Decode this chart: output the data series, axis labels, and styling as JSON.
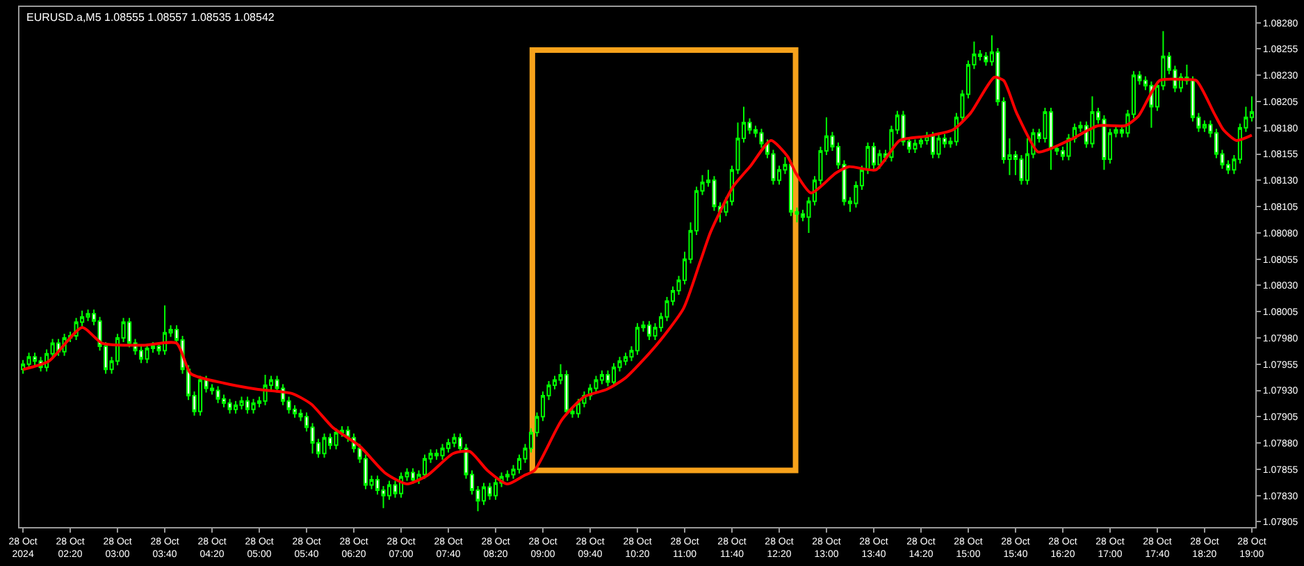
{
  "chart_data": {
    "type": "candlestick",
    "title": "EURUSD.a,M5 1.08555 1.08557 1.08535 1.08542",
    "xlim": [
      "2024-10-28T01:37",
      "2024-10-28T19:03"
    ],
    "xticks": [
      {
        "value": "2024-10-28T01:40",
        "label": "28 Oct 2024"
      },
      {
        "value": "2024-10-28T02:20",
        "label": "28 Oct 02:20"
      },
      {
        "value": "2024-10-28T03:00",
        "label": "28 Oct 03:00"
      },
      {
        "value": "2024-10-28T03:40",
        "label": "28 Oct 03:40"
      },
      {
        "value": "2024-10-28T04:20",
        "label": "28 Oct 04:20"
      },
      {
        "value": "2024-10-28T05:00",
        "label": "28 Oct 05:00"
      },
      {
        "value": "2024-10-28T05:40",
        "label": "28 Oct 05:40"
      },
      {
        "value": "2024-10-28T06:20",
        "label": "28 Oct 06:20"
      },
      {
        "value": "2024-10-28T07:00",
        "label": "28 Oct 07:00"
      },
      {
        "value": "2024-10-28T07:40",
        "label": "28 Oct 07:40"
      },
      {
        "value": "2024-10-28T08:20",
        "label": "28 Oct 08:20"
      },
      {
        "value": "2024-10-28T09:00",
        "label": "28 Oct 09:00"
      },
      {
        "value": "2024-10-28T09:40",
        "label": "28 Oct 09:40"
      },
      {
        "value": "2024-10-28T10:20",
        "label": "28 Oct 10:20"
      },
      {
        "value": "2024-10-28T11:00",
        "label": "28 Oct 11:00"
      },
      {
        "value": "2024-10-28T11:40",
        "label": "28 Oct 11:40"
      },
      {
        "value": "2024-10-28T12:20",
        "label": "28 Oct 12:20"
      },
      {
        "value": "2024-10-28T13:00",
        "label": "28 Oct 13:00"
      },
      {
        "value": "2024-10-28T13:40",
        "label": "28 Oct 13:40"
      },
      {
        "value": "2024-10-28T14:20",
        "label": "28 Oct 14:20"
      },
      {
        "value": "2024-10-28T15:00",
        "label": "28 Oct 15:00"
      },
      {
        "value": "2024-10-28T15:40",
        "label": "28 Oct 15:40"
      },
      {
        "value": "2024-10-28T16:20",
        "label": "28 Oct 16:20"
      },
      {
        "value": "2024-10-28T17:00",
        "label": "28 Oct 17:00"
      },
      {
        "value": "2024-10-28T17:40",
        "label": "28 Oct 17:40"
      },
      {
        "value": "2024-10-28T18:20",
        "label": "28 Oct 18:20"
      },
      {
        "value": "2024-10-28T19:00",
        "label": "28 Oct 19:00"
      }
    ],
    "ylim": [
      1.078,
      1.08295
    ],
    "yticks": [
      1.07805,
      {
        "value": 1.0783,
        "label": "1.07830"
      },
      1.07855,
      {
        "value": 1.0788,
        "label": "1.07880"
      },
      1.07905,
      {
        "value": 1.0793,
        "label": "1.07930"
      },
      1.07955,
      {
        "value": 1.0798,
        "label": "1.07980"
      },
      1.08005,
      {
        "value": 1.0803,
        "label": "1.08030"
      },
      1.08055,
      {
        "value": 1.0808,
        "label": "1.08080"
      },
      1.08105,
      {
        "value": 1.0813,
        "label": "1.08130"
      },
      1.08155,
      {
        "value": 1.0818,
        "label": "1.08180"
      },
      1.08205,
      {
        "value": 1.0823,
        "label": "1.08230"
      },
      1.08255,
      {
        "value": 1.0828,
        "label": "1.08280"
      }
    ],
    "grid": false,
    "series": [
      {
        "color": "#00ff00",
        "x": [
          "2024-10-28T01:40",
          "2024-10-28T01:45",
          "2024-10-28T01:50",
          "2024-10-28T01:55",
          "2024-10-28T02:00",
          "2024-10-28T02:05",
          "2024-10-28T02:10",
          "2024-10-28T02:15",
          "2024-10-28T02:20",
          "2024-10-28T02:25",
          "2024-10-28T02:30",
          "2024-10-28T02:35",
          "2024-10-28T02:40",
          "2024-10-28T02:45",
          "2024-10-28T02:50",
          "2024-10-28T02:55",
          "2024-10-28T03:00",
          "2024-10-28T03:05",
          "2024-10-28T03:10",
          "2024-10-28T03:15",
          "2024-10-28T03:20",
          "2024-10-28T03:25",
          "2024-10-28T03:30",
          "2024-10-28T03:35",
          "2024-10-28T03:40",
          "2024-10-28T03:45",
          "2024-10-28T03:50",
          "2024-10-28T03:55",
          "2024-10-28T04:00",
          "2024-10-28T04:05",
          "2024-10-28T04:10",
          "2024-10-28T04:15",
          "2024-10-28T04:20",
          "2024-10-28T04:25",
          "2024-10-28T04:30",
          "2024-10-28T04:35",
          "2024-10-28T04:40",
          "2024-10-28T04:45",
          "2024-10-28T04:50",
          "2024-10-28T04:55",
          "2024-10-28T05:00",
          "2024-10-28T05:05",
          "2024-10-28T05:10",
          "2024-10-28T05:15",
          "2024-10-28T05:20",
          "2024-10-28T05:25",
          "2024-10-28T05:30",
          "2024-10-28T05:35",
          "2024-10-28T05:40",
          "2024-10-28T05:45",
          "2024-10-28T05:50",
          "2024-10-28T05:55",
          "2024-10-28T06:00",
          "2024-10-28T06:05",
          "2024-10-28T06:10",
          "2024-10-28T06:15",
          "2024-10-28T06:20",
          "2024-10-28T06:25",
          "2024-10-28T06:30",
          "2024-10-28T06:35",
          "2024-10-28T06:40",
          "2024-10-28T06:45",
          "2024-10-28T06:50",
          "2024-10-28T06:55",
          "2024-10-28T07:00",
          "2024-10-28T07:05",
          "2024-10-28T07:10",
          "2024-10-28T07:15",
          "2024-10-28T07:20",
          "2024-10-28T07:25",
          "2024-10-28T07:30",
          "2024-10-28T07:35",
          "2024-10-28T07:40",
          "2024-10-28T07:45",
          "2024-10-28T07:50",
          "2024-10-28T07:55",
          "2024-10-28T08:00",
          "2024-10-28T08:05",
          "2024-10-28T08:10",
          "2024-10-28T08:15",
          "2024-10-28T08:20",
          "2024-10-28T08:25",
          "2024-10-28T08:30",
          "2024-10-28T08:35",
          "2024-10-28T08:40",
          "2024-10-28T08:45",
          "2024-10-28T08:50",
          "2024-10-28T08:55",
          "2024-10-28T09:00",
          "2024-10-28T09:05",
          "2024-10-28T09:10",
          "2024-10-28T09:15",
          "2024-10-28T09:20",
          "2024-10-28T09:25",
          "2024-10-28T09:30",
          "2024-10-28T09:35",
          "2024-10-28T09:40",
          "2024-10-28T09:45",
          "2024-10-28T09:50",
          "2024-10-28T09:55",
          "2024-10-28T10:00",
          "2024-10-28T10:05",
          "2024-10-28T10:10",
          "2024-10-28T10:15",
          "2024-10-28T10:20",
          "2024-10-28T10:25",
          "2024-10-28T10:30",
          "2024-10-28T10:35",
          "2024-10-28T10:40",
          "2024-10-28T10:45",
          "2024-10-28T10:50",
          "2024-10-28T10:55",
          "2024-10-28T11:00",
          "2024-10-28T11:05",
          "2024-10-28T11:10",
          "2024-10-28T11:15",
          "2024-10-28T11:20",
          "2024-10-28T11:25",
          "2024-10-28T11:30",
          "2024-10-28T11:35",
          "2024-10-28T11:40",
          "2024-10-28T11:45",
          "2024-10-28T11:50",
          "2024-10-28T11:55",
          "2024-10-28T12:00",
          "2024-10-28T12:05",
          "2024-10-28T12:10",
          "2024-10-28T12:15",
          "2024-10-28T12:20",
          "2024-10-28T12:25",
          "2024-10-28T12:30",
          "2024-10-28T12:35",
          "2024-10-28T12:40",
          "2024-10-28T12:45",
          "2024-10-28T12:50",
          "2024-10-28T12:55",
          "2024-10-28T13:00",
          "2024-10-28T13:05",
          "2024-10-28T13:10",
          "2024-10-28T13:15",
          "2024-10-28T13:20",
          "2024-10-28T13:25",
          "2024-10-28T13:30",
          "2024-10-28T13:35",
          "2024-10-28T13:40",
          "2024-10-28T13:45",
          "2024-10-28T13:50",
          "2024-10-28T13:55",
          "2024-10-28T14:00",
          "2024-10-28T14:05",
          "2024-10-28T14:10",
          "2024-10-28T14:15",
          "2024-10-28T14:20",
          "2024-10-28T14:25",
          "2024-10-28T14:30",
          "2024-10-28T14:35",
          "2024-10-28T14:40",
          "2024-10-28T14:45",
          "2024-10-28T14:50",
          "2024-10-28T14:55",
          "2024-10-28T15:00",
          "2024-10-28T15:05",
          "2024-10-28T15:10",
          "2024-10-28T15:15",
          "2024-10-28T15:20",
          "2024-10-28T15:25",
          "2024-10-28T15:30",
          "2024-10-28T15:35",
          "2024-10-28T15:40",
          "2024-10-28T15:45",
          "2024-10-28T15:50",
          "2024-10-28T15:55",
          "2024-10-28T16:00",
          "2024-10-28T16:05",
          "2024-10-28T16:10",
          "2024-10-28T16:15",
          "2024-10-28T16:20",
          "2024-10-28T16:25",
          "2024-10-28T16:30",
          "2024-10-28T16:35",
          "2024-10-28T16:40",
          "2024-10-28T16:45",
          "2024-10-28T16:50",
          "2024-10-28T16:55",
          "2024-10-28T17:00",
          "2024-10-28T17:05",
          "2024-10-28T17:10",
          "2024-10-28T17:15",
          "2024-10-28T17:20",
          "2024-10-28T17:25",
          "2024-10-28T17:30",
          "2024-10-28T17:35",
          "2024-10-28T17:40",
          "2024-10-28T17:45",
          "2024-10-28T17:50",
          "2024-10-28T17:55",
          "2024-10-28T18:00",
          "2024-10-28T18:05",
          "2024-10-28T18:10",
          "2024-10-28T18:15",
          "2024-10-28T18:20",
          "2024-10-28T18:25",
          "2024-10-28T18:30",
          "2024-10-28T18:35",
          "2024-10-28T18:40",
          "2024-10-28T18:45",
          "2024-10-28T18:50",
          "2024-10-28T18:55",
          "2024-10-28T19:00"
        ],
        "ohlc": [
          [
            1.0795,
            1.07959,
            1.07946,
            1.07955
          ],
          [
            1.07955,
            1.07966,
            1.07951,
            1.07962
          ],
          [
            1.07962,
            1.07966,
            1.07954,
            1.07958
          ],
          [
            1.07958,
            1.07962,
            1.07948,
            1.07952
          ],
          [
            1.07952,
            1.07969,
            1.07948,
            1.07965
          ],
          [
            1.07965,
            1.07979,
            1.07961,
            1.07975
          ],
          [
            1.07975,
            1.07979,
            1.07963,
            1.07967
          ],
          [
            1.07967,
            1.07984,
            1.07963,
            1.0798
          ],
          [
            1.0798,
            1.07986,
            1.07976,
            1.07982
          ],
          [
            1.07982,
            1.07999,
            1.07978,
            1.07995
          ],
          [
            1.07995,
            1.08006,
            1.07991,
            1.08
          ],
          [
            1.08,
            1.08007,
            1.07996,
            1.08003
          ],
          [
            1.08003,
            1.08007,
            1.07992,
            1.07996
          ],
          [
            1.07996,
            1.08,
            1.07968,
            1.07972
          ],
          [
            1.07972,
            1.07976,
            1.07946,
            1.0795
          ],
          [
            1.0795,
            1.07962,
            1.07946,
            1.07958
          ],
          [
            1.07958,
            1.07984,
            1.07954,
            1.0798
          ],
          [
            1.0798,
            1.07999,
            1.07976,
            1.07995
          ],
          [
            1.07995,
            1.07999,
            1.07971,
            1.07975
          ],
          [
            1.07975,
            1.07979,
            1.07964,
            1.07968
          ],
          [
            1.07968,
            1.07972,
            1.07956,
            1.0796
          ],
          [
            1.0796,
            1.07974,
            1.07956,
            1.0797
          ],
          [
            1.0797,
            1.07976,
            1.07966,
            1.07972
          ],
          [
            1.07972,
            1.07976,
            1.07964,
            1.07968
          ],
          [
            1.07968,
            1.08011,
            1.07964,
            1.07985
          ],
          [
            1.07985,
            1.07992,
            1.07981,
            1.07988
          ],
          [
            1.07988,
            1.07992,
            1.07974,
            1.07978
          ],
          [
            1.07978,
            1.07982,
            1.07946,
            1.0795
          ],
          [
            1.0795,
            1.07954,
            1.07921,
            1.07925
          ],
          [
            1.07925,
            1.07929,
            1.07906,
            1.0791
          ],
          [
            1.0791,
            1.07944,
            1.07906,
            1.0794
          ],
          [
            1.0794,
            1.07944,
            1.07928,
            1.07932
          ],
          [
            1.07932,
            1.07936,
            1.07926,
            1.0793
          ],
          [
            1.0793,
            1.07934,
            1.07918,
            1.07922
          ],
          [
            1.07922,
            1.07926,
            1.07914,
            1.07918
          ],
          [
            1.07918,
            1.07922,
            1.07908,
            1.07912
          ],
          [
            1.07912,
            1.0792,
            1.07908,
            1.07916
          ],
          [
            1.07916,
            1.07924,
            1.07912,
            1.0792
          ],
          [
            1.0792,
            1.07924,
            1.07908,
            1.07912
          ],
          [
            1.07912,
            1.07922,
            1.07908,
            1.07918
          ],
          [
            1.07918,
            1.07924,
            1.07914,
            1.0792
          ],
          [
            1.0792,
            1.07945,
            1.07916,
            1.07935
          ],
          [
            1.07935,
            1.07944,
            1.07931,
            1.0794
          ],
          [
            1.0794,
            1.07944,
            1.07928,
            1.07932
          ],
          [
            1.07932,
            1.07936,
            1.07916,
            1.0792
          ],
          [
            1.0792,
            1.07924,
            1.07908,
            1.07912
          ],
          [
            1.07912,
            1.07916,
            1.07904,
            1.07908
          ],
          [
            1.07908,
            1.07912,
            1.07901,
            1.07905
          ],
          [
            1.07905,
            1.07909,
            1.07891,
            1.07895
          ],
          [
            1.07895,
            1.07899,
            1.0787,
            1.0788
          ],
          [
            1.0788,
            1.07884,
            1.07866,
            1.0787
          ],
          [
            1.0787,
            1.07889,
            1.07866,
            1.07885
          ],
          [
            1.07885,
            1.07889,
            1.07874,
            1.07878
          ],
          [
            1.07878,
            1.07894,
            1.07874,
            1.0789
          ],
          [
            1.0789,
            1.07896,
            1.07886,
            1.07892
          ],
          [
            1.07892,
            1.07896,
            1.07881,
            1.07885
          ],
          [
            1.07885,
            1.07889,
            1.07871,
            1.07875
          ],
          [
            1.07875,
            1.07879,
            1.07861,
            1.07865
          ],
          [
            1.07865,
            1.07869,
            1.07836,
            1.0784
          ],
          [
            1.0784,
            1.07849,
            1.07836,
            1.07845
          ],
          [
            1.07845,
            1.07849,
            1.07831,
            1.07835
          ],
          [
            1.07835,
            1.07839,
            1.07818,
            1.0783
          ],
          [
            1.0783,
            1.07844,
            1.07826,
            1.0784
          ],
          [
            1.0784,
            1.07844,
            1.07828,
            1.07832
          ],
          [
            1.07832,
            1.07852,
            1.07828,
            1.07848
          ],
          [
            1.07848,
            1.07856,
            1.07844,
            1.07852
          ],
          [
            1.07852,
            1.07856,
            1.07841,
            1.07845
          ],
          [
            1.07845,
            1.07854,
            1.07841,
            1.0785
          ],
          [
            1.0785,
            1.07869,
            1.07846,
            1.07865
          ],
          [
            1.07865,
            1.07874,
            1.07861,
            1.0787
          ],
          [
            1.0787,
            1.07874,
            1.07864,
            1.07868
          ],
          [
            1.07868,
            1.07879,
            1.07864,
            1.07875
          ],
          [
            1.07875,
            1.07884,
            1.07871,
            1.0788
          ],
          [
            1.0788,
            1.07889,
            1.07876,
            1.07885
          ],
          [
            1.07885,
            1.07889,
            1.07871,
            1.07875
          ],
          [
            1.07875,
            1.07879,
            1.07846,
            1.0785
          ],
          [
            1.0785,
            1.07854,
            1.07831,
            1.07835
          ],
          [
            1.07835,
            1.07839,
            1.07815,
            1.07825
          ],
          [
            1.07825,
            1.07842,
            1.07821,
            1.07838
          ],
          [
            1.07838,
            1.07842,
            1.07826,
            1.0783
          ],
          [
            1.0783,
            1.07846,
            1.07826,
            1.07842
          ],
          [
            1.07842,
            1.07852,
            1.07838,
            1.07848
          ],
          [
            1.07848,
            1.07854,
            1.07844,
            1.0785
          ],
          [
            1.0785,
            1.07859,
            1.07846,
            1.07855
          ],
          [
            1.07855,
            1.07869,
            1.07851,
            1.07865
          ],
          [
            1.07865,
            1.07879,
            1.07861,
            1.07875
          ],
          [
            1.07875,
            1.07894,
            1.07871,
            1.0789
          ],
          [
            1.0789,
            1.07909,
            1.07886,
            1.07905
          ],
          [
            1.07905,
            1.07929,
            1.07901,
            1.07925
          ],
          [
            1.07925,
            1.07939,
            1.07921,
            1.07935
          ],
          [
            1.07935,
            1.07944,
            1.07931,
            1.0794
          ],
          [
            1.0794,
            1.07955,
            1.07936,
            1.07945
          ],
          [
            1.07945,
            1.07949,
            1.07906,
            1.0791
          ],
          [
            1.0791,
            1.07914,
            1.07904,
            1.07908
          ],
          [
            1.07908,
            1.07922,
            1.07904,
            1.07918
          ],
          [
            1.07918,
            1.07929,
            1.07914,
            1.07925
          ],
          [
            1.07925,
            1.07936,
            1.07921,
            1.07932
          ],
          [
            1.07932,
            1.07944,
            1.07928,
            1.0794
          ],
          [
            1.0794,
            1.07949,
            1.07936,
            1.07945
          ],
          [
            1.07945,
            1.07949,
            1.07934,
            1.07938
          ],
          [
            1.07938,
            1.07956,
            1.07934,
            1.07952
          ],
          [
            1.07952,
            1.07962,
            1.07948,
            1.07958
          ],
          [
            1.07958,
            1.07966,
            1.07954,
            1.07962
          ],
          [
            1.07962,
            1.07972,
            1.07958,
            1.07968
          ],
          [
            1.07968,
            1.07994,
            1.07964,
            1.0799
          ],
          [
            1.0799,
            1.07996,
            1.07986,
            1.07992
          ],
          [
            1.07992,
            1.07996,
            1.07978,
            1.07982
          ],
          [
            1.07982,
            1.07994,
            1.07978,
            1.0799
          ],
          [
            1.0799,
            1.08004,
            1.07986,
            1.08
          ],
          [
            1.08,
            1.08019,
            1.07996,
            1.08015
          ],
          [
            1.08015,
            1.08029,
            1.08011,
            1.08025
          ],
          [
            1.08025,
            1.08039,
            1.08021,
            1.08035
          ],
          [
            1.08035,
            1.08062,
            1.08031,
            1.08055
          ],
          [
            1.08055,
            1.0809,
            1.08051,
            1.08082
          ],
          [
            1.08082,
            1.08124,
            1.08078,
            1.0812
          ],
          [
            1.0812,
            1.08135,
            1.08116,
            1.08128
          ],
          [
            1.08128,
            1.0814,
            1.08124,
            1.0813
          ],
          [
            1.0813,
            1.08134,
            1.08101,
            1.08105
          ],
          [
            1.08105,
            1.08109,
            1.0809,
            1.081
          ],
          [
            1.081,
            1.08114,
            1.08096,
            1.0811
          ],
          [
            1.0811,
            1.08144,
            1.08106,
            1.0814
          ],
          [
            1.0814,
            1.08185,
            1.08136,
            1.0817
          ],
          [
            1.0817,
            1.082,
            1.08166,
            1.08185
          ],
          [
            1.08185,
            1.08189,
            1.08174,
            1.08178
          ],
          [
            1.08178,
            1.08182,
            1.08171,
            1.08175
          ],
          [
            1.08175,
            1.08179,
            1.08161,
            1.08165
          ],
          [
            1.08165,
            1.08169,
            1.08151,
            1.08155
          ],
          [
            1.08155,
            1.08159,
            1.08126,
            1.0813
          ],
          [
            1.0813,
            1.08144,
            1.08126,
            1.0814
          ],
          [
            1.0814,
            1.08152,
            1.08136,
            1.08145
          ],
          [
            1.08145,
            1.08149,
            1.08096,
            1.081
          ],
          [
            1.081,
            1.08104,
            1.0809,
            1.08098
          ],
          [
            1.08098,
            1.08102,
            1.08091,
            1.08095
          ],
          [
            1.08095,
            1.08114,
            1.0808,
            1.0811
          ],
          [
            1.0811,
            1.08134,
            1.08106,
            1.0813
          ],
          [
            1.0813,
            1.08162,
            1.08126,
            1.08158
          ],
          [
            1.08158,
            1.0819,
            1.08154,
            1.08172
          ],
          [
            1.08172,
            1.08176,
            1.08158,
            1.08162
          ],
          [
            1.08162,
            1.08166,
            1.08141,
            1.08145
          ],
          [
            1.08145,
            1.08149,
            1.08106,
            1.0811
          ],
          [
            1.0811,
            1.08114,
            1.081,
            1.08108
          ],
          [
            1.08108,
            1.08129,
            1.08104,
            1.08125
          ],
          [
            1.08125,
            1.08144,
            1.08121,
            1.0814
          ],
          [
            1.0814,
            1.08166,
            1.08136,
            1.08162
          ],
          [
            1.08162,
            1.08166,
            1.08141,
            1.08145
          ],
          [
            1.08145,
            1.08159,
            1.08141,
            1.08155
          ],
          [
            1.08155,
            1.08159,
            1.08148,
            1.08152
          ],
          [
            1.08152,
            1.08182,
            1.08148,
            1.08178
          ],
          [
            1.08178,
            1.08196,
            1.08174,
            1.08192
          ],
          [
            1.08192,
            1.08196,
            1.08163,
            1.08167
          ],
          [
            1.08167,
            1.08171,
            1.08156,
            1.0816
          ],
          [
            1.0816,
            1.08169,
            1.08156,
            1.08165
          ],
          [
            1.08165,
            1.08172,
            1.08161,
            1.08168
          ],
          [
            1.08168,
            1.08176,
            1.08164,
            1.08172
          ],
          [
            1.08172,
            1.08176,
            1.08151,
            1.08155
          ],
          [
            1.08155,
            1.08174,
            1.08151,
            1.0817
          ],
          [
            1.0817,
            1.08174,
            1.08161,
            1.08165
          ],
          [
            1.08165,
            1.08171,
            1.08161,
            1.08167
          ],
          [
            1.08167,
            1.08194,
            1.08163,
            1.0819
          ],
          [
            1.0819,
            1.08216,
            1.08186,
            1.08212
          ],
          [
            1.08212,
            1.08244,
            1.08208,
            1.0824
          ],
          [
            1.0824,
            1.08262,
            1.08236,
            1.0825
          ],
          [
            1.0825,
            1.08254,
            1.08244,
            1.08248
          ],
          [
            1.08248,
            1.08252,
            1.08239,
            1.08243
          ],
          [
            1.08243,
            1.08268,
            1.08239,
            1.08252
          ],
          [
            1.08252,
            1.08256,
            1.08201,
            1.08205
          ],
          [
            1.08205,
            1.08209,
            1.08146,
            1.0815
          ],
          [
            1.0815,
            1.0817,
            1.08135,
            1.08154
          ],
          [
            1.08154,
            1.08158,
            1.08135,
            1.0815
          ],
          [
            1.0815,
            1.08154,
            1.08126,
            1.0813
          ],
          [
            1.0813,
            1.0817,
            1.08126,
            1.08155
          ],
          [
            1.08155,
            1.08179,
            1.08151,
            1.08175
          ],
          [
            1.08175,
            1.08179,
            1.08166,
            1.0817
          ],
          [
            1.0817,
            1.08199,
            1.08166,
            1.08195
          ],
          [
            1.08195,
            1.08199,
            1.0814,
            1.0816
          ],
          [
            1.0816,
            1.08164,
            1.08154,
            1.08158
          ],
          [
            1.08158,
            1.08162,
            1.08149,
            1.08153
          ],
          [
            1.08153,
            1.08174,
            1.08149,
            1.0817
          ],
          [
            1.0817,
            1.08184,
            1.08166,
            1.0818
          ],
          [
            1.0818,
            1.08186,
            1.08176,
            1.08182
          ],
          [
            1.08182,
            1.08186,
            1.08161,
            1.08165
          ],
          [
            1.08165,
            1.0821,
            1.08161,
            1.08195
          ],
          [
            1.08195,
            1.08199,
            1.08184,
            1.08188
          ],
          [
            1.08188,
            1.08192,
            1.0814,
            1.0815
          ],
          [
            1.0815,
            1.08179,
            1.08146,
            1.08175
          ],
          [
            1.08175,
            1.08182,
            1.08171,
            1.08178
          ],
          [
            1.08178,
            1.08182,
            1.08171,
            1.08175
          ],
          [
            1.08175,
            1.08197,
            1.08171,
            1.08193
          ],
          [
            1.08193,
            1.08234,
            1.08189,
            1.0823
          ],
          [
            1.0823,
            1.08234,
            1.08221,
            1.08225
          ],
          [
            1.08225,
            1.08229,
            1.08216,
            1.0822
          ],
          [
            1.0822,
            1.08224,
            1.0818,
            1.082
          ],
          [
            1.082,
            1.08224,
            1.08196,
            1.0822
          ],
          [
            1.0822,
            1.08272,
            1.08216,
            1.08248
          ],
          [
            1.08248,
            1.08252,
            1.08231,
            1.08235
          ],
          [
            1.08235,
            1.08239,
            1.08214,
            1.08218
          ],
          [
            1.08218,
            1.08232,
            1.08214,
            1.08228
          ],
          [
            1.08228,
            1.0824,
            1.08221,
            1.08225
          ],
          [
            1.08225,
            1.08229,
            1.08186,
            1.0819
          ],
          [
            1.0819,
            1.08194,
            1.08176,
            1.0818
          ],
          [
            1.0818,
            1.08187,
            1.08176,
            1.08183
          ],
          [
            1.08183,
            1.08187,
            1.08171,
            1.08175
          ],
          [
            1.08175,
            1.08179,
            1.08151,
            1.08155
          ],
          [
            1.08155,
            1.08159,
            1.08141,
            1.08145
          ],
          [
            1.08145,
            1.08149,
            1.08136,
            1.0814
          ],
          [
            1.0814,
            1.08154,
            1.08136,
            1.0815
          ],
          [
            1.0815,
            1.08184,
            1.08146,
            1.0818
          ],
          [
            1.0818,
            1.082,
            1.08176,
            1.0819
          ],
          [
            1.0819,
            1.0821,
            1.08186,
            1.08195
          ]
        ]
      },
      {
        "type": "line",
        "color": "#ff0000",
        "x": [
          "2024-10-28T01:40",
          "2024-10-28T02:02",
          "2024-10-28T02:30",
          "2024-10-28T02:47",
          "2024-10-28T03:22",
          "2024-10-28T03:50",
          "2024-10-28T04:02",
          "2024-10-28T04:30",
          "2024-10-28T04:59",
          "2024-10-28T05:28",
          "2024-10-28T05:44",
          "2024-10-28T06:02",
          "2024-10-28T06:25",
          "2024-10-28T06:47",
          "2024-10-28T07:05",
          "2024-10-28T07:22",
          "2024-10-28T07:44",
          "2024-10-28T07:58",
          "2024-10-28T08:13",
          "2024-10-28T08:30",
          "2024-10-28T08:44",
          "2024-10-28T08:53",
          "2024-10-28T09:16",
          "2024-10-28T09:35",
          "2024-10-28T09:54",
          "2024-10-28T10:10",
          "2024-10-28T10:36",
          "2024-10-28T10:59",
          "2024-10-28T11:13",
          "2024-10-28T11:22",
          "2024-10-28T11:41",
          "2024-10-28T11:56",
          "2024-10-28T12:13",
          "2024-10-28T12:27",
          "2024-10-28T12:34",
          "2024-10-28T12:47",
          "2024-10-28T13:08",
          "2024-10-28T13:19",
          "2024-10-28T13:42",
          "2024-10-28T14:02",
          "2024-10-28T14:25",
          "2024-10-28T14:47",
          "2024-10-28T15:02",
          "2024-10-28T15:22",
          "2024-10-28T15:30",
          "2024-10-28T15:41",
          "2024-10-28T15:59",
          "2024-10-28T16:07",
          "2024-10-28T16:27",
          "2024-10-28T16:50",
          "2024-10-28T17:13",
          "2024-10-28T17:24",
          "2024-10-28T17:42",
          "2024-10-28T18:02",
          "2024-10-28T18:13",
          "2024-10-28T18:28",
          "2024-10-28T18:36",
          "2024-10-28T18:47",
          "2024-10-28T19:00"
        ],
        "values": [
          1.0795,
          1.07958,
          1.0799,
          1.07975,
          1.07973,
          1.07975,
          1.07946,
          1.07937,
          1.07931,
          1.07927,
          1.07917,
          1.07895,
          1.07877,
          1.07851,
          1.07841,
          1.07849,
          1.0787,
          1.07872,
          1.07854,
          1.07841,
          1.07849,
          1.07854,
          1.07902,
          1.07924,
          1.07931,
          1.07942,
          1.07973,
          1.08008,
          1.08052,
          1.08081,
          1.08124,
          1.08144,
          1.08168,
          1.08153,
          1.08137,
          1.08118,
          1.08137,
          1.08143,
          1.0814,
          1.08168,
          1.08172,
          1.08178,
          1.08194,
          1.08228,
          1.08225,
          1.08194,
          1.08157,
          1.08159,
          1.08169,
          1.08182,
          1.08182,
          1.08191,
          1.08225,
          1.08226,
          1.08225,
          1.08194,
          1.08178,
          1.08168,
          1.08173
        ]
      }
    ]
  }
}
